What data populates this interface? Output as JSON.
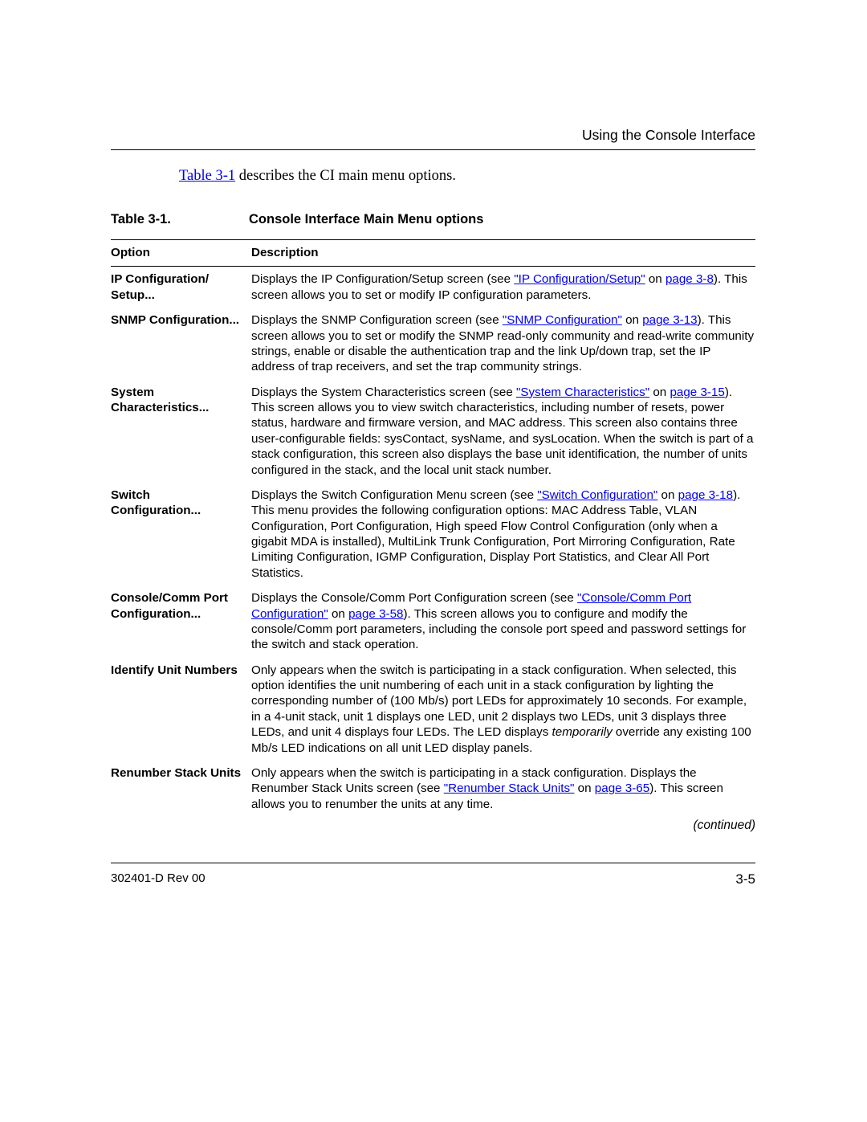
{
  "header": {
    "section_title": "Using the Console Interface"
  },
  "intro": {
    "link_text": "Table 3-1",
    "after": " describes the CI main menu options."
  },
  "caption": {
    "label": "Table 3-1.",
    "title": "Console Interface Main Menu options"
  },
  "table": {
    "head_option": "Option",
    "head_desc": "Description",
    "rows": [
      {
        "option": "IP Configuration/ Setup...",
        "d1": "Displays the IP Configuration/Setup screen (see ",
        "l1": "\"IP Configuration/Setup\"",
        "d2": " on ",
        "l2": "page 3-8",
        "d3": "). This screen allows you to set or modify IP configuration parameters."
      },
      {
        "option": "SNMP Configuration...",
        "d1": "Displays the SNMP Configuration screen (see ",
        "l1": "\"SNMP Configuration\"",
        "d2": " on ",
        "l2": "page 3-13",
        "d3": "). This screen allows you to set or modify the SNMP read-only community and read-write community strings, enable or disable the authentication trap and the link Up/down trap, set the IP address of trap receivers, and set the trap community strings."
      },
      {
        "option": "System Characteristics...",
        "d1": "Displays the System Characteristics screen (see ",
        "l1": "\"System Characteristics\"",
        "d2": " on ",
        "l2": "page 3-15",
        "d3": "). This screen allows you to view switch characteristics, including number of resets, power status, hardware and firmware version, and MAC address. This screen also contains three user-configurable fields: sysContact, sysName, and sysLocation. When the switch is part of a stack configuration, this screen also displays the base unit identification, the number of units configured in the stack, and the local unit stack number."
      },
      {
        "option": "Switch Configuration...",
        "d1": "Displays the Switch Configuration Menu screen (see ",
        "l1": "\"Switch Configuration\"",
        "d2": " on ",
        "l2": "page 3-18",
        "d3": "). This menu provides the following configuration options: MAC Address Table, VLAN Configuration, Port Configuration, High speed Flow Control Configuration (only when a gigabit MDA is installed), MultiLink Trunk Configuration, Port Mirroring Configuration, Rate Limiting Configuration, IGMP Configuration, Display Port Statistics, and Clear All Port Statistics."
      },
      {
        "option": "Console/Comm Port Configuration...",
        "d1": "Displays the Console/Comm Port Configuration screen (see ",
        "l1": "\"Console/Comm Port Configuration\"",
        "d2": " on ",
        "l2": "page 3-58",
        "d3": "). This screen allows you to configure and modify the console/Comm port parameters, including the console port speed and password settings for the switch and stack operation."
      },
      {
        "option": "Identify Unit Numbers",
        "d1": "Only appears when the switch is participating in a stack configuration. When selected, this option identifies the unit numbering of each unit in a stack configuration by lighting the corresponding number of (100 Mb/s) port LEDs for approximately 10 seconds. For example, in a 4-unit stack, unit 1 displays one LED, unit 2 displays two LEDs, unit 3 displays three LEDs, and unit 4 displays four LEDs. The LED displays ",
        "it": "temporarily",
        "d3": " override any existing 100 Mb/s LED indications on all unit LED display panels."
      },
      {
        "option": "Renumber Stack Units",
        "d1": "Only appears when the switch is participating in a stack configuration. Displays the Renumber Stack Units screen (see ",
        "l1": "\"Renumber Stack Units\"",
        "d2": " on ",
        "l2": "page 3-65",
        "d3": "). This screen allows you to renumber the units at any time."
      }
    ]
  },
  "continued": "(continued)",
  "footer": {
    "doc_rev": "302401-D Rev 00",
    "page_no": "3-5"
  },
  "colors": {
    "link": "#0000ee",
    "text": "#000000",
    "bg": "#ffffff"
  }
}
